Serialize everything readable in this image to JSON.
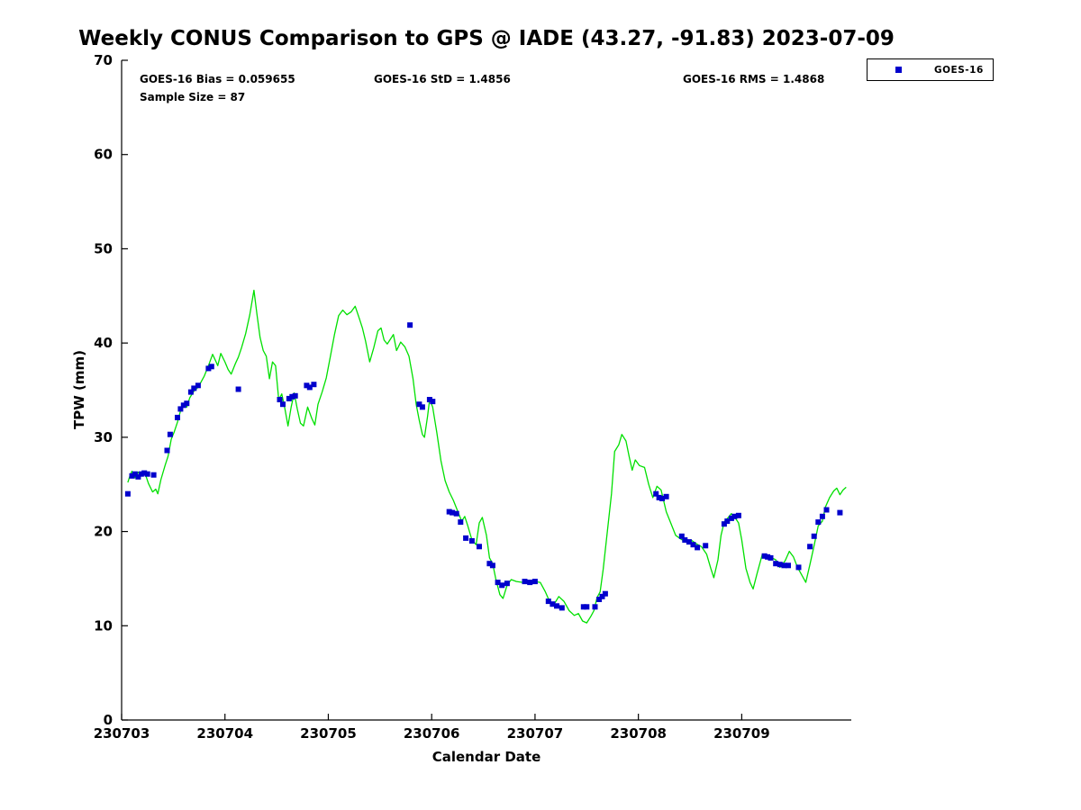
{
  "figure": {
    "annotations": {
      "bias": "GOES-16 Bias = 0.059655",
      "std": "GOES-16 StD = 1.4856",
      "rms": "GOES-16 RMS = 1.4868",
      "sample_size": "Sample Size = 87"
    },
    "legend": {
      "entries": [
        {
          "label": "GOES-16",
          "marker": "square",
          "color": "#0000cc"
        }
      ]
    }
  },
  "chart_data": {
    "type": "line",
    "title": "Weekly CONUS Comparison to GPS @ IADE (43.27, -91.83) 2023-07-09",
    "xlabel": "Calendar Date",
    "ylabel": "TPW (mm)",
    "x_axis": {
      "unit": "days since 230703",
      "range": [
        0,
        7.06
      ],
      "ticks": [
        0,
        1,
        2,
        3,
        4,
        5,
        6
      ],
      "tick_labels": [
        "230703",
        "230704",
        "230705",
        "230706",
        "230707",
        "230708",
        "230709"
      ]
    },
    "y_axis": {
      "range": [
        0,
        70
      ],
      "ticks": [
        0,
        10,
        20,
        30,
        40,
        50,
        60,
        70
      ],
      "tick_labels": [
        "0",
        "10",
        "20",
        "30",
        "40",
        "50",
        "60",
        "70"
      ]
    },
    "grid": false,
    "legend_position": "top-right-outside",
    "series": [
      {
        "name": "GPS",
        "type": "line",
        "color": "#00e000",
        "points": [
          [
            0.06,
            25.2
          ],
          [
            0.08,
            25.9
          ],
          [
            0.1,
            26.4
          ],
          [
            0.13,
            25.7
          ],
          [
            0.16,
            26.3
          ],
          [
            0.19,
            26.0
          ],
          [
            0.22,
            26.4
          ],
          [
            0.26,
            25.1
          ],
          [
            0.3,
            24.2
          ],
          [
            0.33,
            24.5
          ],
          [
            0.35,
            24.0
          ],
          [
            0.38,
            25.5
          ],
          [
            0.42,
            27.0
          ],
          [
            0.45,
            28.0
          ],
          [
            0.48,
            29.8
          ],
          [
            0.51,
            30.6
          ],
          [
            0.54,
            31.6
          ],
          [
            0.57,
            32.8
          ],
          [
            0.6,
            33.4
          ],
          [
            0.63,
            33.2
          ],
          [
            0.66,
            34.2
          ],
          [
            0.7,
            34.9
          ],
          [
            0.73,
            35.2
          ],
          [
            0.76,
            35.7
          ],
          [
            0.8,
            36.5
          ],
          [
            0.84,
            37.6
          ],
          [
            0.88,
            38.8
          ],
          [
            0.91,
            38.1
          ],
          [
            0.93,
            37.6
          ],
          [
            0.96,
            38.9
          ],
          [
            1.0,
            38.0
          ],
          [
            1.03,
            37.2
          ],
          [
            1.06,
            36.7
          ],
          [
            1.1,
            37.8
          ],
          [
            1.13,
            38.5
          ],
          [
            1.16,
            39.5
          ],
          [
            1.2,
            41.0
          ],
          [
            1.24,
            43.0
          ],
          [
            1.28,
            45.6
          ],
          [
            1.31,
            43.0
          ],
          [
            1.34,
            40.6
          ],
          [
            1.37,
            39.2
          ],
          [
            1.4,
            38.6
          ],
          [
            1.43,
            36.2
          ],
          [
            1.46,
            38.0
          ],
          [
            1.49,
            37.6
          ],
          [
            1.52,
            34.0
          ],
          [
            1.55,
            34.6
          ],
          [
            1.58,
            33.0
          ],
          [
            1.61,
            31.2
          ],
          [
            1.64,
            33.2
          ],
          [
            1.67,
            34.7
          ],
          [
            1.7,
            33.0
          ],
          [
            1.73,
            31.5
          ],
          [
            1.76,
            31.2
          ],
          [
            1.8,
            33.2
          ],
          [
            1.84,
            32.0
          ],
          [
            1.87,
            31.3
          ],
          [
            1.9,
            33.5
          ],
          [
            1.94,
            34.8
          ],
          [
            1.98,
            36.3
          ],
          [
            2.02,
            38.6
          ],
          [
            2.06,
            40.9
          ],
          [
            2.1,
            42.9
          ],
          [
            2.14,
            43.5
          ],
          [
            2.18,
            43.0
          ],
          [
            2.22,
            43.3
          ],
          [
            2.26,
            43.9
          ],
          [
            2.3,
            42.6
          ],
          [
            2.33,
            41.6
          ],
          [
            2.36,
            40.2
          ],
          [
            2.4,
            38.0
          ],
          [
            2.44,
            39.5
          ],
          [
            2.48,
            41.3
          ],
          [
            2.51,
            41.6
          ],
          [
            2.54,
            40.3
          ],
          [
            2.57,
            39.9
          ],
          [
            2.6,
            40.4
          ],
          [
            2.63,
            40.9
          ],
          [
            2.66,
            39.2
          ],
          [
            2.7,
            40.1
          ],
          [
            2.74,
            39.6
          ],
          [
            2.78,
            38.6
          ],
          [
            2.82,
            36.2
          ],
          [
            2.85,
            33.5
          ],
          [
            2.88,
            31.8
          ],
          [
            2.91,
            30.3
          ],
          [
            2.93,
            30.0
          ],
          [
            2.96,
            32.2
          ],
          [
            2.98,
            34.0
          ],
          [
            3.01,
            33.2
          ],
          [
            3.05,
            30.5
          ],
          [
            3.09,
            27.5
          ],
          [
            3.13,
            25.4
          ],
          [
            3.17,
            24.2
          ],
          [
            3.21,
            23.3
          ],
          [
            3.25,
            22.2
          ],
          [
            3.29,
            21.1
          ],
          [
            3.32,
            21.6
          ],
          [
            3.35,
            20.6
          ],
          [
            3.39,
            19.1
          ],
          [
            3.43,
            18.6
          ],
          [
            3.46,
            20.9
          ],
          [
            3.49,
            21.5
          ],
          [
            3.53,
            19.6
          ],
          [
            3.56,
            17.2
          ],
          [
            3.59,
            16.6
          ],
          [
            3.62,
            15.0
          ],
          [
            3.66,
            13.3
          ],
          [
            3.69,
            12.9
          ],
          [
            3.73,
            14.3
          ],
          [
            3.77,
            14.9
          ],
          [
            3.82,
            14.7
          ],
          [
            3.88,
            14.6
          ],
          [
            3.94,
            14.7
          ],
          [
            4.0,
            14.7
          ],
          [
            4.05,
            14.6
          ],
          [
            4.1,
            13.6
          ],
          [
            4.14,
            12.6
          ],
          [
            4.18,
            12.2
          ],
          [
            4.23,
            13.1
          ],
          [
            4.28,
            12.6
          ],
          [
            4.33,
            11.6
          ],
          [
            4.38,
            11.1
          ],
          [
            4.42,
            11.3
          ],
          [
            4.46,
            10.5
          ],
          [
            4.5,
            10.3
          ],
          [
            4.54,
            11.0
          ],
          [
            4.57,
            11.6
          ],
          [
            4.6,
            13.0
          ],
          [
            4.63,
            13.6
          ],
          [
            4.66,
            16.0
          ],
          [
            4.7,
            20.0
          ],
          [
            4.74,
            24.0
          ],
          [
            4.77,
            28.5
          ],
          [
            4.81,
            29.2
          ],
          [
            4.84,
            30.3
          ],
          [
            4.88,
            29.6
          ],
          [
            4.91,
            28.0
          ],
          [
            4.94,
            26.5
          ],
          [
            4.97,
            27.6
          ],
          [
            5.01,
            27.0
          ],
          [
            5.06,
            26.8
          ],
          [
            5.1,
            25.0
          ],
          [
            5.14,
            23.6
          ],
          [
            5.18,
            24.8
          ],
          [
            5.22,
            24.4
          ],
          [
            5.27,
            22.1
          ],
          [
            5.31,
            21.0
          ],
          [
            5.36,
            19.6
          ],
          [
            5.41,
            19.2
          ],
          [
            5.46,
            18.9
          ],
          [
            5.51,
            19.1
          ],
          [
            5.56,
            18.7
          ],
          [
            5.61,
            18.4
          ],
          [
            5.66,
            17.6
          ],
          [
            5.7,
            16.1
          ],
          [
            5.73,
            15.1
          ],
          [
            5.77,
            17.0
          ],
          [
            5.8,
            19.6
          ],
          [
            5.83,
            21.0
          ],
          [
            5.87,
            21.5
          ],
          [
            5.9,
            21.9
          ],
          [
            5.94,
            21.4
          ],
          [
            5.97,
            20.9
          ],
          [
            6.0,
            19.1
          ],
          [
            6.04,
            16.1
          ],
          [
            6.08,
            14.6
          ],
          [
            6.11,
            13.9
          ],
          [
            6.15,
            15.6
          ],
          [
            6.2,
            17.6
          ],
          [
            6.24,
            17.4
          ],
          [
            6.29,
            17.2
          ],
          [
            6.33,
            17.0
          ],
          [
            6.37,
            16.2
          ],
          [
            6.42,
            16.9
          ],
          [
            6.46,
            17.9
          ],
          [
            6.5,
            17.3
          ],
          [
            6.54,
            16.2
          ],
          [
            6.58,
            15.4
          ],
          [
            6.62,
            14.6
          ],
          [
            6.66,
            16.5
          ],
          [
            6.7,
            18.5
          ],
          [
            6.74,
            20.6
          ],
          [
            6.78,
            21.1
          ],
          [
            6.81,
            22.6
          ],
          [
            6.85,
            23.6
          ],
          [
            6.89,
            24.3
          ],
          [
            6.92,
            24.6
          ],
          [
            6.95,
            23.9
          ],
          [
            6.98,
            24.4
          ],
          [
            7.01,
            24.7
          ]
        ]
      },
      {
        "name": "GOES-16",
        "type": "scatter",
        "marker": "square",
        "color": "#0000cc",
        "sample_size": 87,
        "points": [
          [
            0.06,
            24.0
          ],
          [
            0.1,
            25.9
          ],
          [
            0.13,
            26.1
          ],
          [
            0.16,
            25.8
          ],
          [
            0.19,
            26.1
          ],
          [
            0.22,
            26.2
          ],
          [
            0.25,
            26.1
          ],
          [
            0.31,
            26.0
          ],
          [
            0.44,
            28.6
          ],
          [
            0.47,
            30.3
          ],
          [
            0.54,
            32.1
          ],
          [
            0.57,
            33.0
          ],
          [
            0.6,
            33.4
          ],
          [
            0.63,
            33.6
          ],
          [
            0.67,
            34.8
          ],
          [
            0.7,
            35.2
          ],
          [
            0.74,
            35.5
          ],
          [
            0.84,
            37.3
          ],
          [
            0.87,
            37.5
          ],
          [
            1.13,
            35.1
          ],
          [
            1.53,
            34.0
          ],
          [
            1.56,
            33.5
          ],
          [
            1.62,
            34.1
          ],
          [
            1.65,
            34.3
          ],
          [
            1.68,
            34.4
          ],
          [
            1.79,
            35.5
          ],
          [
            1.82,
            35.3
          ],
          [
            1.86,
            35.6
          ],
          [
            2.79,
            41.9
          ],
          [
            2.88,
            33.5
          ],
          [
            2.91,
            33.2
          ],
          [
            2.98,
            34.0
          ],
          [
            3.01,
            33.8
          ],
          [
            3.17,
            22.1
          ],
          [
            3.2,
            22.0
          ],
          [
            3.24,
            21.9
          ],
          [
            3.28,
            21.0
          ],
          [
            3.33,
            19.3
          ],
          [
            3.39,
            19.0
          ],
          [
            3.46,
            18.4
          ],
          [
            3.56,
            16.6
          ],
          [
            3.59,
            16.4
          ],
          [
            3.64,
            14.6
          ],
          [
            3.68,
            14.3
          ],
          [
            3.73,
            14.5
          ],
          [
            3.9,
            14.7
          ],
          [
            3.95,
            14.6
          ],
          [
            4.0,
            14.7
          ],
          [
            4.13,
            12.6
          ],
          [
            4.17,
            12.3
          ],
          [
            4.21,
            12.1
          ],
          [
            4.26,
            11.9
          ],
          [
            4.47,
            12.0
          ],
          [
            4.5,
            12.0
          ],
          [
            4.58,
            12.0
          ],
          [
            4.62,
            12.8
          ],
          [
            4.65,
            13.1
          ],
          [
            4.68,
            13.4
          ],
          [
            5.17,
            24.0
          ],
          [
            5.2,
            23.6
          ],
          [
            5.23,
            23.5
          ],
          [
            5.27,
            23.7
          ],
          [
            5.42,
            19.5
          ],
          [
            5.45,
            19.1
          ],
          [
            5.49,
            18.9
          ],
          [
            5.53,
            18.6
          ],
          [
            5.57,
            18.3
          ],
          [
            5.65,
            18.5
          ],
          [
            5.83,
            20.8
          ],
          [
            5.86,
            21.1
          ],
          [
            5.9,
            21.4
          ],
          [
            5.93,
            21.6
          ],
          [
            5.97,
            21.7
          ],
          [
            6.22,
            17.4
          ],
          [
            6.25,
            17.3
          ],
          [
            6.28,
            17.2
          ],
          [
            6.33,
            16.6
          ],
          [
            6.37,
            16.5
          ],
          [
            6.41,
            16.4
          ],
          [
            6.45,
            16.4
          ],
          [
            6.55,
            16.2
          ],
          [
            6.66,
            18.4
          ],
          [
            6.7,
            19.5
          ],
          [
            6.74,
            21.0
          ],
          [
            6.78,
            21.6
          ],
          [
            6.82,
            22.3
          ],
          [
            6.95,
            22.0
          ]
        ]
      }
    ]
  }
}
